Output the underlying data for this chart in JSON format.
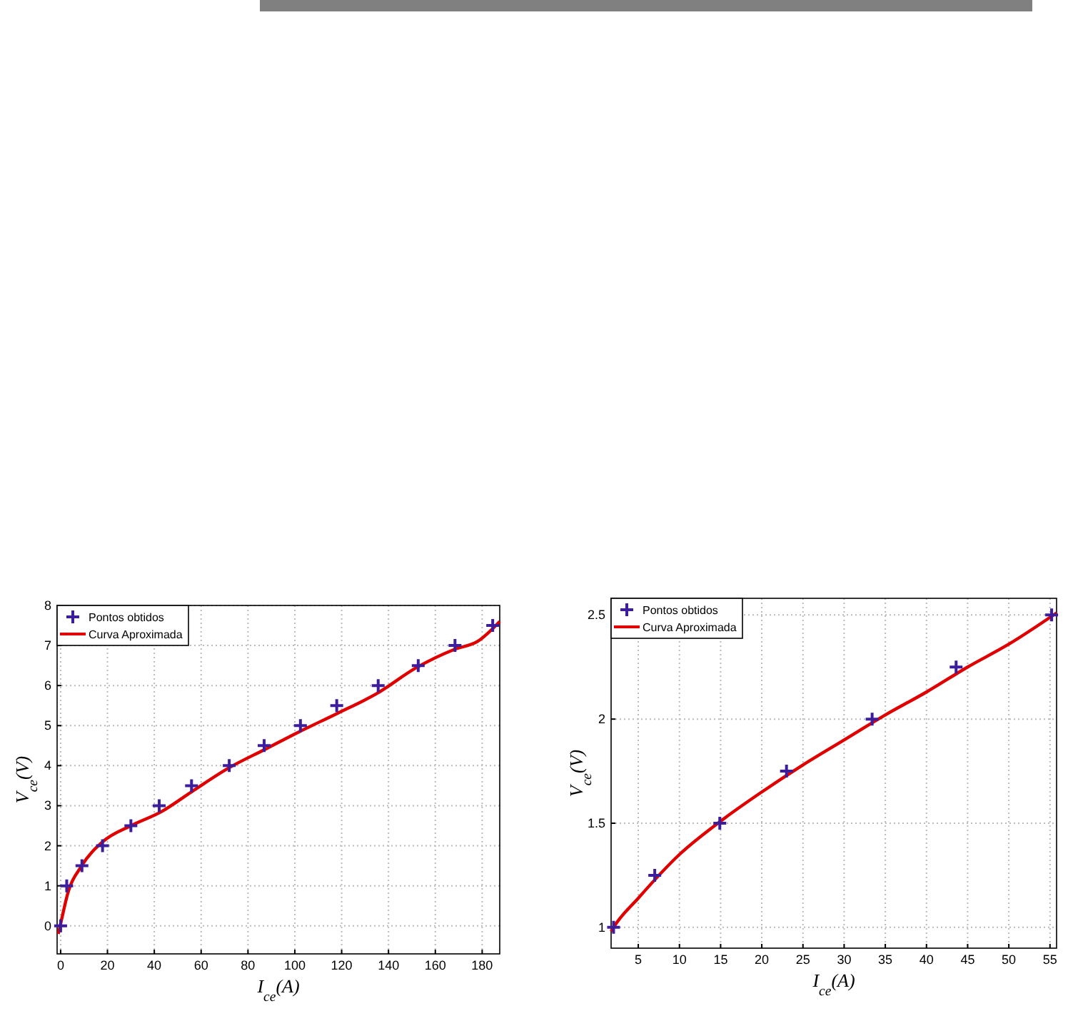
{
  "chart_data": [
    {
      "type": "line",
      "xlabel": "I$_{ce}$(A)",
      "ylabel": "V$_{ce}$(V)",
      "xlim": [
        -1.5,
        187.5
      ],
      "ylim": [
        -0.7,
        8
      ],
      "xticks": [
        0,
        20,
        40,
        60,
        80,
        100,
        120,
        140,
        160,
        180
      ],
      "yticks": [
        0,
        1,
        2,
        3,
        4,
        5,
        6,
        7,
        8
      ],
      "grid": true,
      "legend": "top left",
      "series": [
        {
          "name": "Pontos obtidos",
          "type": "scatter",
          "marker": "cross",
          "color": "#3c1e9c",
          "x": [
            0,
            2.6,
            9.1,
            17.9,
            30,
            42.1,
            55.9,
            72,
            86.9,
            102.4,
            117.9,
            135.6,
            152.7,
            168.4,
            184.5
          ],
          "values": [
            0,
            1,
            1.5,
            2,
            2.5,
            3,
            3.5,
            4,
            4.5,
            5,
            5.5,
            6,
            6.5,
            7,
            7.5
          ]
        },
        {
          "name": "Curva Aproximada",
          "color": "#e00000",
          "x": [
            -1,
            0,
            3,
            9,
            18,
            30,
            43,
            56,
            72,
            87,
            102,
            118,
            135,
            152,
            168,
            178,
            187.5
          ],
          "values": [
            -0.2,
            0.05,
            0.8,
            1.5,
            2.1,
            2.5,
            2.85,
            3.35,
            3.95,
            4.4,
            4.85,
            5.3,
            5.8,
            6.45,
            6.9,
            7.1,
            7.6
          ]
        }
      ]
    },
    {
      "type": "line",
      "xlabel": "I$_{ce}$(A)",
      "ylabel": "V$_{ce}$(V)",
      "xlim": [
        1.7,
        55.8
      ],
      "ylim": [
        0.9,
        2.58
      ],
      "xticks": [
        5,
        10,
        15,
        20,
        25,
        30,
        35,
        40,
        45,
        50,
        55
      ],
      "yticks": [
        1,
        1.5,
        2,
        2.5
      ],
      "grid": true,
      "legend": "top left",
      "series": [
        {
          "name": "Pontos obtidos",
          "type": "scatter",
          "marker": "cross",
          "color": "#3c1e9c",
          "x": [
            2,
            7,
            14.9,
            23,
            33.4,
            43.6,
            55.2
          ],
          "values": [
            1,
            1.25,
            1.5,
            1.75,
            2,
            2.25,
            2.5
          ]
        },
        {
          "name": "Curva Aproximada",
          "color": "#e00000",
          "x": [
            1.7,
            2,
            5,
            10,
            15,
            20,
            25,
            30,
            35,
            40,
            45,
            50,
            55.8
          ],
          "values": [
            0.98,
            1,
            1.14,
            1.35,
            1.51,
            1.65,
            1.78,
            1.9,
            2.02,
            2.13,
            2.25,
            2.36,
            2.51
          ]
        }
      ]
    }
  ]
}
